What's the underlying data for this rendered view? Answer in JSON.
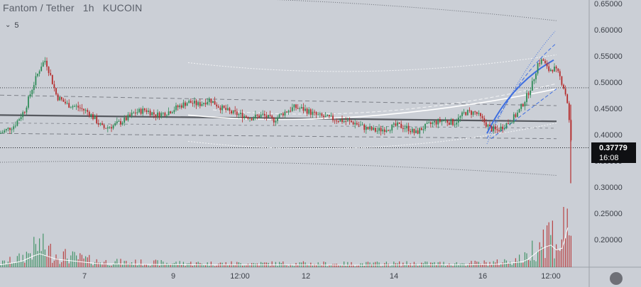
{
  "legend": {
    "symbol": "Fantom / Tether",
    "interval": "1h",
    "exchange": "KUCOIN",
    "indicator_count": "5"
  },
  "colors": {
    "background": "#cbcfd6",
    "up": "#2e8b57",
    "down": "#b52c2c",
    "regression_line": "#56595f",
    "envelope": "#ffffff",
    "channel_line": "#3f6fe0",
    "price_tag": "#0f1013"
  },
  "icons": {
    "collapse": "chevron-down-icon",
    "settings": "circle-icon"
  },
  "chart_data": {
    "type": "candlestick",
    "y_axis": {
      "ticks": [
        "0.65000",
        "0.60000",
        "0.55000",
        "0.50000",
        "0.45000",
        "0.40000",
        "0.35000",
        "0.30000",
        "0.25000",
        "0.20000"
      ],
      "range": [
        0.168,
        0.665
      ]
    },
    "x_axis": {
      "ticks": [
        "7",
        "9",
        "12:00",
        "12",
        "14",
        "16",
        "12:00"
      ]
    },
    "last_price": {
      "value": "0.37779",
      "countdown": "16:08"
    },
    "price_path": [
      [
        0,
        0.405
      ],
      [
        20,
        0.42
      ],
      [
        35,
        0.45
      ],
      [
        45,
        0.49
      ],
      [
        52,
        0.515
      ],
      [
        58,
        0.535
      ],
      [
        64,
        0.545
      ],
      [
        70,
        0.52
      ],
      [
        80,
        0.475
      ],
      [
        95,
        0.46
      ],
      [
        110,
        0.455
      ],
      [
        125,
        0.445
      ],
      [
        135,
        0.43
      ],
      [
        145,
        0.415
      ],
      [
        160,
        0.42
      ],
      [
        175,
        0.43
      ],
      [
        190,
        0.445
      ],
      [
        205,
        0.45
      ],
      [
        220,
        0.44
      ],
      [
        235,
        0.445
      ],
      [
        250,
        0.455
      ],
      [
        265,
        0.465
      ],
      [
        280,
        0.46
      ],
      [
        295,
        0.47
      ],
      [
        310,
        0.455
      ],
      [
        325,
        0.445
      ],
      [
        340,
        0.44
      ],
      [
        355,
        0.435
      ],
      [
        370,
        0.44
      ],
      [
        385,
        0.43
      ],
      [
        400,
        0.445
      ],
      [
        415,
        0.455
      ],
      [
        430,
        0.45
      ],
      [
        445,
        0.44
      ],
      [
        460,
        0.435
      ],
      [
        480,
        0.43
      ],
      [
        500,
        0.425
      ],
      [
        515,
        0.415
      ],
      [
        530,
        0.41
      ],
      [
        545,
        0.415
      ],
      [
        560,
        0.42
      ],
      [
        575,
        0.415
      ],
      [
        585,
        0.405
      ],
      [
        595,
        0.415
      ],
      [
        610,
        0.425
      ],
      [
        625,
        0.43
      ],
      [
        640,
        0.425
      ],
      [
        655,
        0.445
      ],
      [
        670,
        0.445
      ],
      [
        680,
        0.43
      ],
      [
        690,
        0.415
      ],
      [
        700,
        0.41
      ],
      [
        710,
        0.42
      ],
      [
        720,
        0.43
      ],
      [
        730,
        0.445
      ],
      [
        740,
        0.47
      ],
      [
        750,
        0.5
      ],
      [
        758,
        0.54
      ],
      [
        765,
        0.545
      ],
      [
        772,
        0.525
      ],
      [
        780,
        0.53
      ],
      [
        788,
        0.515
      ],
      [
        795,
        0.49
      ],
      [
        800,
        0.46
      ],
      [
        804,
        0.39
      ],
      [
        807,
        0.3777
      ]
    ],
    "volume_profile": [
      [
        0,
        0.02
      ],
      [
        30,
        0.05
      ],
      [
        55,
        0.12
      ],
      [
        65,
        0.1
      ],
      [
        80,
        0.07
      ],
      [
        110,
        0.05
      ],
      [
        140,
        0.03
      ],
      [
        200,
        0.025
      ],
      [
        300,
        0.02
      ],
      [
        400,
        0.02
      ],
      [
        500,
        0.018
      ],
      [
        580,
        0.02
      ],
      [
        650,
        0.02
      ],
      [
        700,
        0.025
      ],
      [
        740,
        0.05
      ],
      [
        760,
        0.15
      ],
      [
        775,
        0.2
      ],
      [
        790,
        0.12
      ],
      [
        800,
        0.35
      ],
      [
        807,
        0.1
      ]
    ]
  }
}
